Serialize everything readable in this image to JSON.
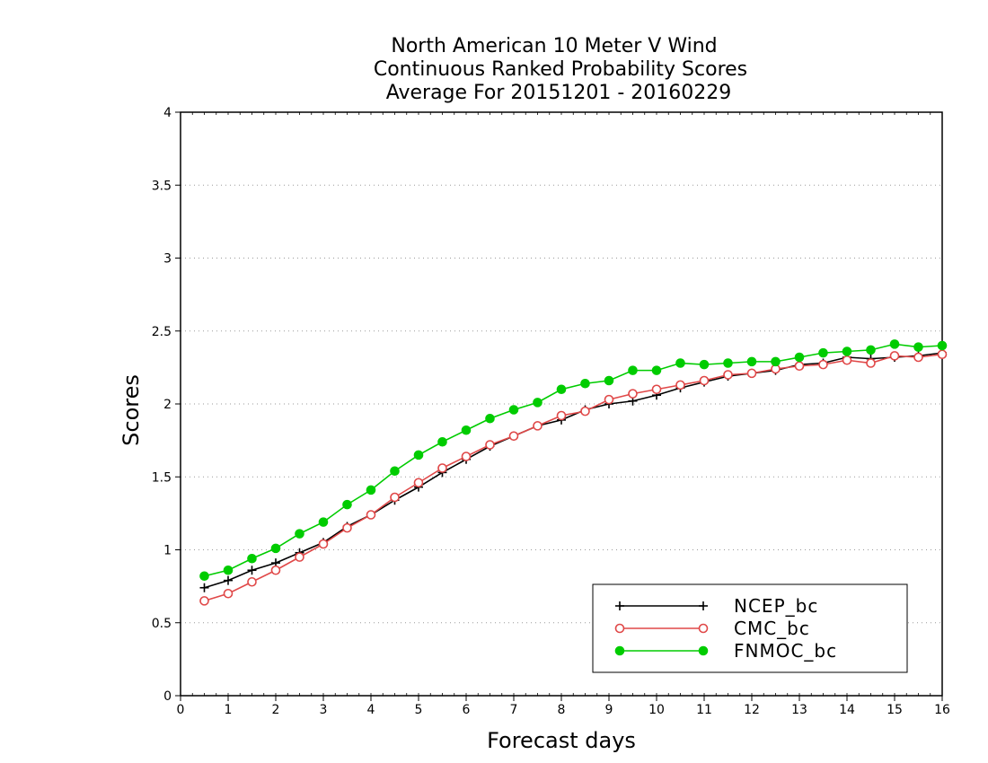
{
  "chart_data": {
    "type": "line",
    "title": [
      "North American 10 Meter V Wind",
      "Continuous Ranked Probability Scores",
      "Average For 20151201 - 20160229"
    ],
    "xlabel": "Forecast days",
    "ylabel": "Scores",
    "xlim": [
      0,
      16
    ],
    "ylim": [
      0,
      4
    ],
    "xticks": [
      "0",
      "1",
      "2",
      "3",
      "4",
      "5",
      "6",
      "7",
      "8",
      "9",
      "10",
      "11",
      "12",
      "13",
      "14",
      "15",
      "16"
    ],
    "yticks": [
      "0",
      "0.5",
      "1",
      "1.5",
      "2",
      "2.5",
      "3",
      "3.5",
      "4"
    ],
    "grid": "horizontal dotted",
    "legend_position": "bottom-right",
    "x": [
      0.5,
      1,
      1.5,
      2,
      2.5,
      3,
      3.5,
      4,
      4.5,
      5,
      5.5,
      6,
      6.5,
      7,
      7.5,
      8,
      8.5,
      9,
      9.5,
      10,
      10.5,
      11,
      11.5,
      12,
      12.5,
      13,
      13.5,
      14,
      14.5,
      15,
      15.5,
      16
    ],
    "series": [
      {
        "name": "NCEP_bc",
        "color": "#000000",
        "marker": "plus",
        "values": [
          0.74,
          0.79,
          0.86,
          0.91,
          0.98,
          1.05,
          1.16,
          1.24,
          1.34,
          1.43,
          1.53,
          1.62,
          1.71,
          1.78,
          1.85,
          1.89,
          1.96,
          2.0,
          2.02,
          2.06,
          2.11,
          2.15,
          2.19,
          2.21,
          2.23,
          2.27,
          2.28,
          2.32,
          2.31,
          2.32,
          2.33,
          2.35
        ]
      },
      {
        "name": "CMC_bc",
        "color": "#e04848",
        "marker": "open-circle",
        "values": [
          0.65,
          0.7,
          0.78,
          0.86,
          0.95,
          1.04,
          1.15,
          1.24,
          1.36,
          1.46,
          1.56,
          1.64,
          1.72,
          1.78,
          1.85,
          1.92,
          1.95,
          2.03,
          2.07,
          2.1,
          2.13,
          2.16,
          2.2,
          2.21,
          2.24,
          2.26,
          2.27,
          2.3,
          2.28,
          2.33,
          2.32,
          2.34
        ]
      },
      {
        "name": "FNMOC_bc",
        "color": "#00cc00",
        "marker": "filled-circle",
        "values": [
          0.82,
          0.86,
          0.94,
          1.01,
          1.11,
          1.19,
          1.31,
          1.41,
          1.54,
          1.65,
          1.74,
          1.82,
          1.9,
          1.96,
          2.01,
          2.1,
          2.14,
          2.16,
          2.23,
          2.23,
          2.28,
          2.27,
          2.28,
          2.29,
          2.29,
          2.32,
          2.35,
          2.36,
          2.37,
          2.41,
          2.39,
          2.4
        ]
      }
    ]
  }
}
